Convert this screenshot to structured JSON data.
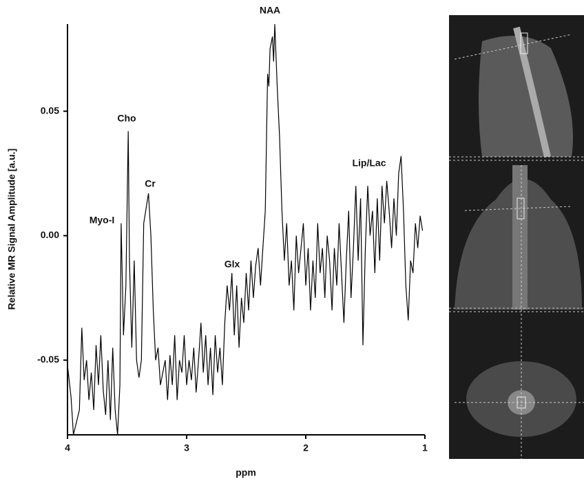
{
  "chart_data": {
    "type": "line",
    "x_label": "ppm",
    "y_label": "Relative MR Signal Amplitude [a.u.]",
    "xlim": [
      4,
      1
    ],
    "xticks": [
      4,
      3,
      2,
      1
    ],
    "ylim": [
      -0.08,
      0.085
    ],
    "yticks": [
      -0.05,
      {
        "value": 0,
        "label": "0.00"
      },
      0.05
    ],
    "annotations": [
      "Myo-I",
      "Cho",
      "Cr",
      "Glx",
      "NAA",
      "Lip/Lac"
    ],
    "series": [
      {
        "color": "#000000",
        "x": [
          4.0,
          3.97,
          3.95,
          3.9,
          3.88,
          3.86,
          3.84,
          3.82,
          3.8,
          3.78,
          3.76,
          3.74,
          3.72,
          3.7,
          3.68,
          3.66,
          3.64,
          3.62,
          3.6,
          3.58,
          3.56,
          3.55,
          3.53,
          3.51,
          3.49,
          3.48,
          3.46,
          3.44,
          3.42,
          3.4,
          3.38,
          3.36,
          3.32,
          3.3,
          3.28,
          3.26,
          3.24,
          3.22,
          3.2,
          3.18,
          3.16,
          3.14,
          3.12,
          3.1,
          3.08,
          3.06,
          3.04,
          3.02,
          3.0,
          2.98,
          2.96,
          2.94,
          2.92,
          2.9,
          2.88,
          2.86,
          2.84,
          2.82,
          2.8,
          2.78,
          2.76,
          2.74,
          2.72,
          2.7,
          2.68,
          2.66,
          2.64,
          2.62,
          2.6,
          2.58,
          2.56,
          2.54,
          2.52,
          2.5,
          2.48,
          2.46,
          2.44,
          2.42,
          2.4,
          2.38,
          2.36,
          2.34,
          2.32,
          2.31,
          2.3,
          2.28,
          2.27,
          2.26,
          2.24,
          2.22,
          2.2,
          2.18,
          2.16,
          2.14,
          2.12,
          2.1,
          2.08,
          2.06,
          2.04,
          2.02,
          2.0,
          1.98,
          1.96,
          1.94,
          1.92,
          1.9,
          1.88,
          1.86,
          1.84,
          1.82,
          1.8,
          1.78,
          1.76,
          1.74,
          1.72,
          1.7,
          1.68,
          1.66,
          1.64,
          1.62,
          1.6,
          1.58,
          1.56,
          1.54,
          1.52,
          1.5,
          1.48,
          1.46,
          1.44,
          1.42,
          1.4,
          1.38,
          1.36,
          1.34,
          1.32,
          1.3,
          1.28,
          1.26,
          1.24,
          1.22,
          1.2,
          1.18,
          1.16,
          1.14,
          1.12,
          1.1,
          1.08,
          1.06,
          1.04,
          1.02
        ],
        "values": [
          -0.052,
          -0.065,
          -0.08,
          -0.07,
          -0.037,
          -0.058,
          -0.05,
          -0.066,
          -0.055,
          -0.07,
          -0.044,
          -0.06,
          -0.04,
          -0.062,
          -0.072,
          -0.05,
          -0.074,
          -0.045,
          -0.07,
          -0.08,
          -0.06,
          0.005,
          -0.04,
          -0.02,
          0.042,
          -0.01,
          -0.045,
          -0.01,
          -0.05,
          -0.057,
          -0.05,
          0.005,
          0.017,
          0.0,
          -0.03,
          -0.05,
          -0.045,
          -0.06,
          -0.055,
          -0.05,
          -0.066,
          -0.048,
          -0.06,
          -0.04,
          -0.066,
          -0.05,
          -0.055,
          -0.04,
          -0.06,
          -0.05,
          -0.058,
          -0.045,
          -0.063,
          -0.05,
          -0.035,
          -0.055,
          -0.04,
          -0.06,
          -0.045,
          -0.064,
          -0.04,
          -0.055,
          -0.045,
          -0.06,
          -0.035,
          -0.02,
          -0.03,
          -0.015,
          -0.04,
          -0.02,
          -0.045,
          -0.025,
          -0.035,
          -0.015,
          -0.03,
          -0.01,
          -0.025,
          -0.012,
          -0.005,
          -0.02,
          -0.005,
          0.01,
          0.065,
          0.06,
          0.075,
          0.08,
          0.07,
          0.085,
          0.06,
          0.04,
          0.01,
          -0.01,
          0.005,
          -0.02,
          -0.01,
          -0.03,
          0.0,
          -0.015,
          -0.005,
          0.005,
          -0.02,
          -0.005,
          -0.03,
          -0.01,
          -0.025,
          0.005,
          -0.015,
          -0.005,
          -0.025,
          0.0,
          -0.01,
          -0.03,
          -0.005,
          -0.02,
          0.005,
          -0.015,
          -0.035,
          -0.01,
          0.01,
          -0.025,
          -0.005,
          0.02,
          -0.01,
          0.015,
          -0.044,
          -0.005,
          0.02,
          0.0,
          0.01,
          -0.015,
          0.015,
          -0.01,
          0.02,
          0.005,
          0.022,
          0.01,
          -0.005,
          0.015,
          0.0,
          0.025,
          0.032,
          0.01,
          -0.02,
          -0.034,
          -0.01,
          -0.015,
          0.005,
          -0.005,
          0.008,
          0.002
        ]
      }
    ]
  }
}
